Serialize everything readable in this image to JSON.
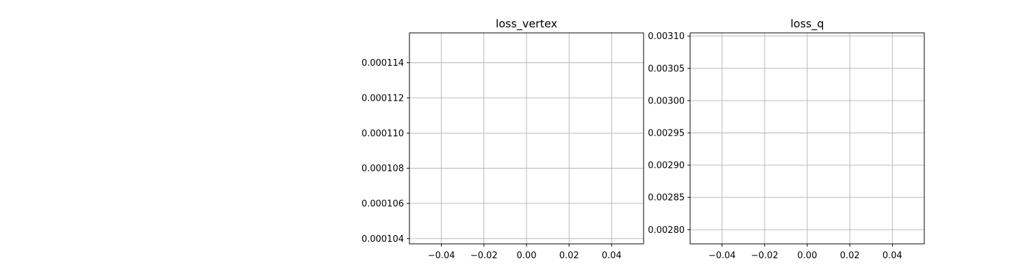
{
  "figure": {
    "background": "#ffffff",
    "grid_color": "#b0b0b0",
    "axis_color": "#000000"
  },
  "chart_data": [
    {
      "type": "line",
      "title": "loss_vertex",
      "xlabel": "",
      "ylabel": "",
      "xlim": [
        -0.055,
        0.055
      ],
      "ylim": [
        0.0001037,
        0.0001157
      ],
      "xticks": [
        -0.04,
        -0.02,
        0.0,
        0.02,
        0.04
      ],
      "xtick_labels": [
        "−0.04",
        "−0.02",
        "0.00",
        "0.02",
        "0.04"
      ],
      "yticks": [
        0.000104,
        0.000106,
        0.000108,
        0.00011,
        0.000112,
        0.000114
      ],
      "ytick_labels": [
        "0.000104",
        "0.000106",
        "0.000108",
        "0.000110",
        "0.000112",
        "0.000114"
      ],
      "grid": true,
      "series": []
    },
    {
      "type": "line",
      "title": "loss_q",
      "xlabel": "",
      "ylabel": "",
      "xlim": [
        -0.055,
        0.055
      ],
      "ylim": [
        0.002778,
        0.003105
      ],
      "xticks": [
        -0.04,
        -0.02,
        0.0,
        0.02,
        0.04
      ],
      "xtick_labels": [
        "−0.04",
        "−0.02",
        "0.00",
        "0.02",
        "0.04"
      ],
      "yticks": [
        0.0028,
        0.00285,
        0.0029,
        0.00295,
        0.003,
        0.00305,
        0.0031
      ],
      "ytick_labels": [
        "0.00280",
        "0.00285",
        "0.00290",
        "0.00295",
        "0.00300",
        "0.00305",
        "0.00310"
      ],
      "grid": true,
      "series": []
    }
  ]
}
